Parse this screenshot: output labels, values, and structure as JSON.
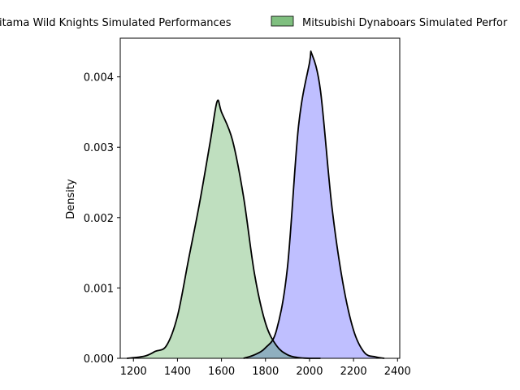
{
  "chart_data": {
    "type": "area",
    "title": "",
    "xlabel": "",
    "ylabel": "Density",
    "xlim": [
      1140,
      2410
    ],
    "ylim": [
      0,
      0.00455
    ],
    "x_ticks": [
      1200,
      1400,
      1600,
      1800,
      2000,
      2200,
      2400
    ],
    "y_ticks": [
      0.0,
      0.001,
      0.002,
      0.003,
      0.004
    ],
    "y_tick_labels": [
      "0.000",
      "0.001",
      "0.002",
      "0.003",
      "0.004"
    ],
    "grid": false,
    "legend_position": "top",
    "series": [
      {
        "name": "Saitama Wild Knights Simulated Performances",
        "legend_visible_text": "itama Wild Knights Simulated Performances",
        "color": "#0000ff",
        "x": [
          1700,
          1750,
          1800,
          1850,
          1900,
          1950,
          2000,
          2010,
          2050,
          2100,
          2150,
          2200,
          2250,
          2300,
          2340
        ],
        "values": [
          0.0,
          5e-05,
          0.00015,
          0.0004,
          0.0013,
          0.0033,
          0.0042,
          0.00433,
          0.0038,
          0.0022,
          0.0011,
          0.0004,
          8e-05,
          2e-05,
          0.0
        ]
      },
      {
        "name": "Mitsubishi Dynaboars Simulated Performances",
        "legend_visible_text": "Mitsubishi Dynaboars Simulated Perfor",
        "color": "#008000",
        "x": [
          1170,
          1250,
          1300,
          1350,
          1400,
          1450,
          1500,
          1550,
          1580,
          1600,
          1650,
          1700,
          1750,
          1800,
          1850,
          1900,
          1950,
          2000,
          2050
        ],
        "values": [
          0.0,
          3e-05,
          0.0001,
          0.00018,
          0.0006,
          0.0014,
          0.0022,
          0.0031,
          0.00365,
          0.0035,
          0.0031,
          0.0023,
          0.0012,
          0.0005,
          0.00018,
          5e-05,
          1e-05,
          0.0,
          0.0
        ]
      }
    ]
  }
}
